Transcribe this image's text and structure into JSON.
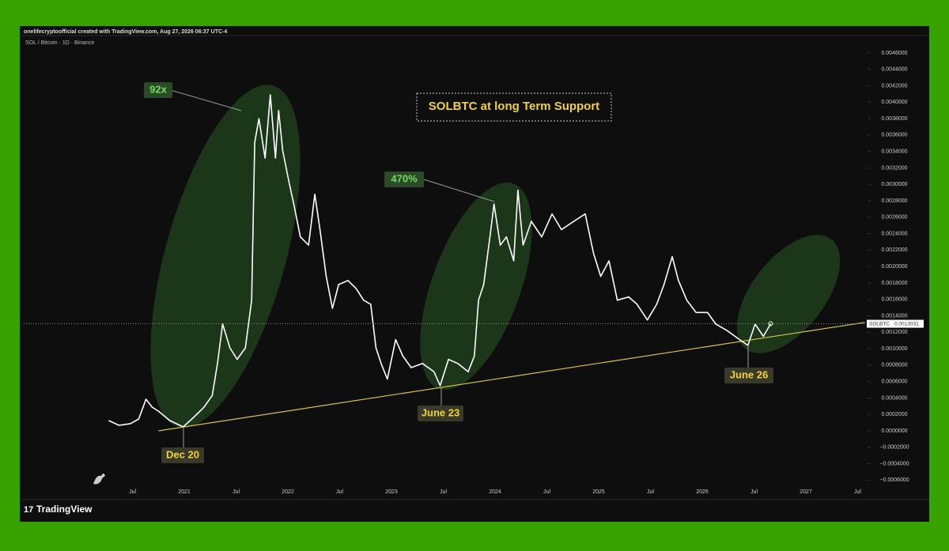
{
  "header": "onelifecryptoofficial created with TradingView.com, Aug 27, 2026 06:37 UTC-4",
  "brand": "TradingView",
  "chart_data": {
    "type": "line",
    "subtitle": "SOL / Bitcoin · 1D · Binance",
    "title": "SOLBTC at long Term Support",
    "annotations": [
      "92x",
      "470%",
      "Dec 20",
      "June 23",
      "June 26"
    ],
    "symbol": "SOLBTC",
    "last_price": 0.0013031,
    "color": "#ffffff",
    "x": [
      2020.27,
      2020.37,
      2020.48,
      2020.56,
      2020.63,
      2020.69,
      2020.75,
      2020.86,
      2020.99,
      2021.09,
      2021.19,
      2021.27,
      2021.32,
      2021.37,
      2021.44,
      2021.51,
      2021.59,
      2021.65,
      2021.68,
      2021.72,
      2021.78,
      2021.83,
      2021.88,
      2021.91,
      2021.95,
      2022.01,
      2022.06,
      2022.12,
      2022.2,
      2022.26,
      2022.31,
      2022.37,
      2022.43,
      2022.49,
      2022.58,
      2022.66,
      2022.73,
      2022.8,
      2022.85,
      2022.9,
      2022.96,
      2023.04,
      2023.11,
      2023.19,
      2023.3,
      2023.41,
      2023.47,
      2023.55,
      2023.64,
      2023.74,
      2023.8,
      2023.84,
      2023.89,
      2023.95,
      2023.99,
      2024.05,
      2024.11,
      2024.18,
      2024.22,
      2024.27,
      2024.35,
      2024.45,
      2024.55,
      2024.64,
      2024.76,
      2024.87,
      2024.95,
      2025.02,
      2025.1,
      2025.18,
      2025.29,
      2025.37,
      2025.47,
      2025.56,
      2025.63,
      2025.71,
      2025.77,
      2025.85,
      2025.94,
      2026.05,
      2026.13,
      2026.24,
      2026.36,
      2026.44,
      2026.51,
      2026.59,
      2026.66
    ],
    "values": [
      0.000125,
      6.7e-05,
      8.7e-05,
      0.000144,
      0.000385,
      0.000288,
      0.00024,
      0.000125,
      4.8e-05,
      0.000163,
      0.000288,
      0.00043,
      0.00082,
      0.0013,
      0.00101,
      0.00087,
      0.00101,
      0.00159,
      0.00351,
      0.0038,
      0.00332,
      0.00409,
      0.00332,
      0.0039,
      0.00341,
      0.00303,
      0.00274,
      0.00236,
      0.00226,
      0.00288,
      0.00245,
      0.00188,
      0.00149,
      0.00178,
      0.00183,
      0.00173,
      0.00159,
      0.00154,
      0.00101,
      0.00082,
      0.00063,
      0.00111,
      0.00091,
      0.00077,
      0.00082,
      0.00072,
      0.00055,
      0.00087,
      0.00082,
      0.00072,
      0.00091,
      0.00159,
      0.00178,
      0.00236,
      0.00276,
      0.00226,
      0.00236,
      0.00207,
      0.00293,
      0.00226,
      0.00255,
      0.00236,
      0.00264,
      0.00245,
      0.00255,
      0.00264,
      0.00216,
      0.00188,
      0.00207,
      0.00159,
      0.00163,
      0.00154,
      0.00135,
      0.00154,
      0.00178,
      0.00212,
      0.00183,
      0.00159,
      0.00144,
      0.00144,
      0.0013,
      0.00122,
      0.00111,
      0.00104,
      0.0013,
      0.00115,
      0.0013031
    ],
    "trendline": {
      "x": [
        2020.75,
        2027.57
      ],
      "values": [
        0.0,
        0.00132
      ],
      "color": "#d8c24a"
    },
    "xlim": [
      2019.45,
      2027.58
    ],
    "xticks": [
      {
        "value": 2020.5,
        "label": "Jul"
      },
      {
        "value": 2021,
        "label": "2021"
      },
      {
        "value": 2021.5,
        "label": "Jul"
      },
      {
        "value": 2022,
        "label": "2022"
      },
      {
        "value": 2022.5,
        "label": "Jul"
      },
      {
        "value": 2023,
        "label": "2023"
      },
      {
        "value": 2023.5,
        "label": "Jul"
      },
      {
        "value": 2024,
        "label": "2024"
      },
      {
        "value": 2024.5,
        "label": "Jul"
      },
      {
        "value": 2025,
        "label": "2025"
      },
      {
        "value": 2025.5,
        "label": "Jul"
      },
      {
        "value": 2026,
        "label": "2026"
      },
      {
        "value": 2026.5,
        "label": "Jul"
      },
      {
        "value": 2027,
        "label": "2027"
      },
      {
        "value": 2027.5,
        "label": "Jul"
      }
    ],
    "ylim": [
      -0.00077,
      0.00484
    ],
    "yticks": [
      {
        "value": 0.0046,
        "label": "0.0046000"
      },
      {
        "value": 0.0044,
        "label": "0.0044000"
      },
      {
        "value": 0.0042,
        "label": "0.0042000"
      },
      {
        "value": 0.004,
        "label": "0.0040000"
      },
      {
        "value": 0.0038,
        "label": "0.0038000"
      },
      {
        "value": 0.0036,
        "label": "0.0036000"
      },
      {
        "value": 0.0034,
        "label": "0.0034000"
      },
      {
        "value": 0.0032,
        "label": "0.0032000"
      },
      {
        "value": 0.003,
        "label": "0.0030000"
      },
      {
        "value": 0.0028,
        "label": "0.0028000"
      },
      {
        "value": 0.0026,
        "label": "0.0026000"
      },
      {
        "value": 0.0024,
        "label": "0.0024000"
      },
      {
        "value": 0.0022,
        "label": "0.0022000"
      },
      {
        "value": 0.002,
        "label": "0.0020000"
      },
      {
        "value": 0.0018,
        "label": "0.0018000"
      },
      {
        "value": 0.0016,
        "label": "0.0016000"
      },
      {
        "value": 0.0014,
        "label": "0.0014000"
      },
      {
        "value": 0.0012,
        "label": "0.0012000"
      },
      {
        "value": 0.001,
        "label": "0.0010000"
      },
      {
        "value": 0.0008,
        "label": "0.0008000"
      },
      {
        "value": 0.0006,
        "label": "0.0006000"
      },
      {
        "value": 0.0004,
        "label": "0.0004000"
      },
      {
        "value": 0.0002,
        "label": "0.0002000"
      },
      {
        "value": 0,
        "label": "0.0000000"
      },
      {
        "value": -0.0002,
        "label": "−0.0002000"
      },
      {
        "value": -0.0004,
        "label": "−0.0004000"
      },
      {
        "value": -0.0006,
        "label": "−0.0006000"
      }
    ]
  }
}
